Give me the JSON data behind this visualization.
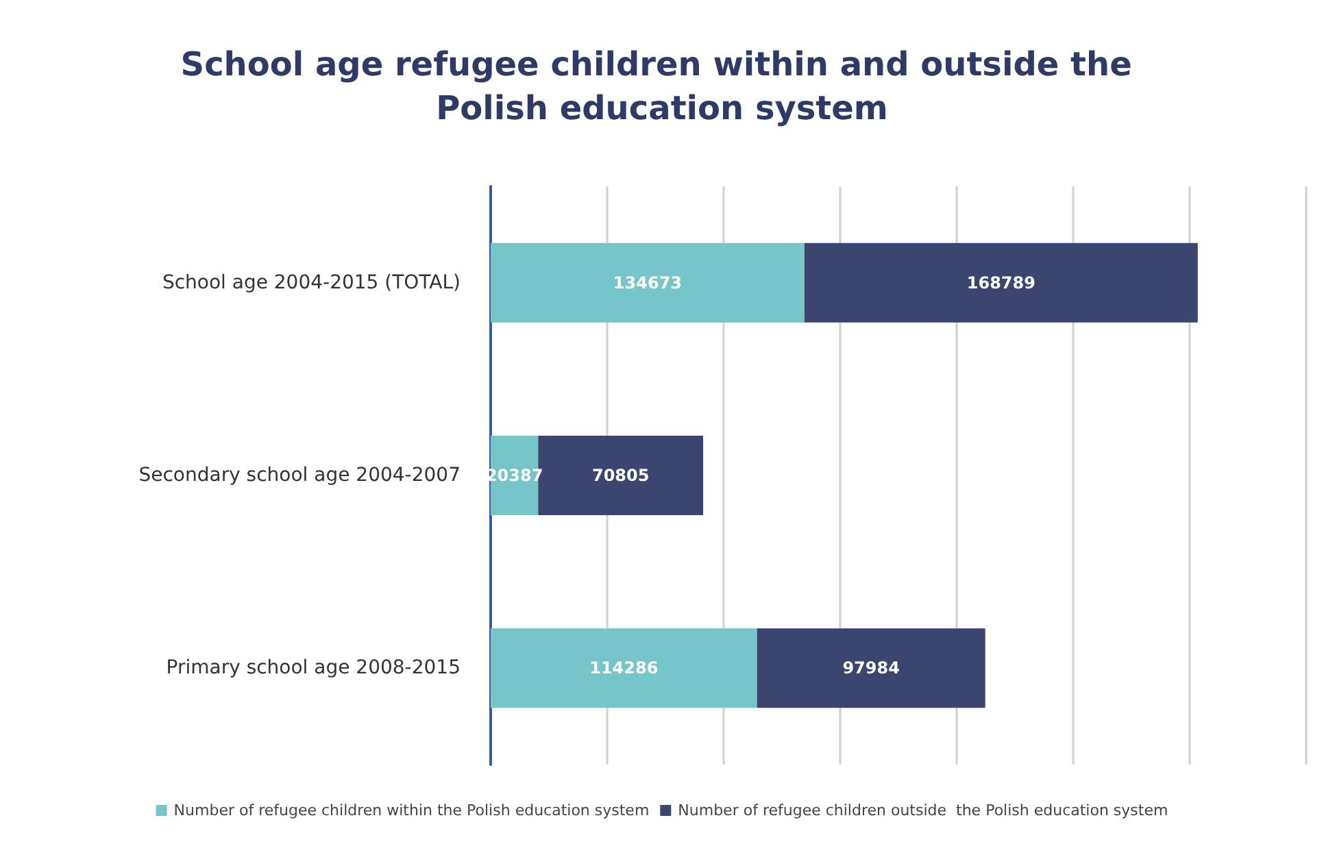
{
  "chart_data": {
    "type": "bar",
    "orientation": "horizontal",
    "stacked": true,
    "title": "School age refugee children within and outside the Polish education system",
    "categories": [
      "School age 2004-2015 (TOTAL)",
      "Secondary school age 2004-2007",
      "Primary school age 2008-2015"
    ],
    "series": [
      {
        "name": "Number of refugee children within the Polish education system",
        "color": "#76c5c8",
        "values": [
          134673,
          20387,
          114286
        ]
      },
      {
        "name": "Number of refugee children outside  the Polish education system",
        "color": "#3b4570",
        "values": [
          168789,
          70805,
          97984
        ]
      }
    ],
    "xlim": [
      0,
      350000
    ],
    "xticks": [
      {
        "value": 0,
        "label": null
      },
      {
        "value": 50000,
        "label": null
      },
      {
        "value": 100000,
        "label": null
      },
      {
        "value": 150000,
        "label": null
      },
      {
        "value": 200000,
        "label": null
      },
      {
        "value": 250000,
        "label": null
      },
      {
        "value": 300000,
        "label": null
      },
      {
        "value": 350000,
        "label": null
      }
    ],
    "tick_labels": "y",
    "grid": "x",
    "legend": "bottom",
    "data_labels": true
  }
}
